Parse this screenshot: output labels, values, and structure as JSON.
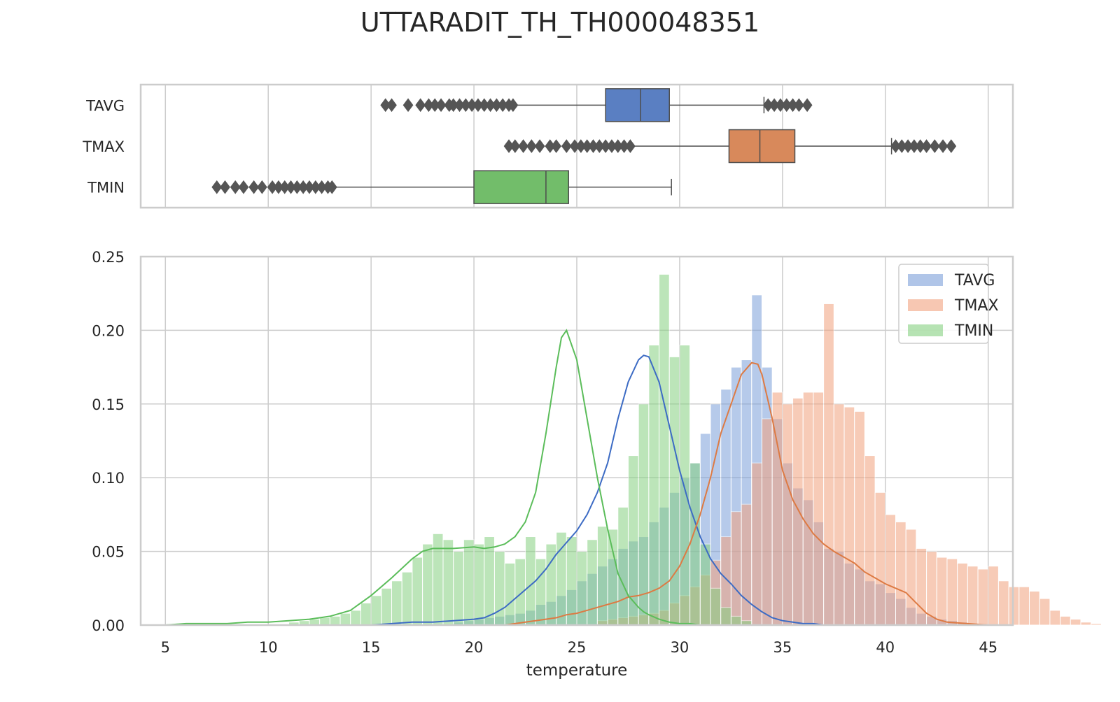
{
  "chart_data": {
    "type": "histogram-with-boxplot",
    "title": "UTTARADIT_TH_TH000048351",
    "xlabel": "temperature",
    "ylabel": "",
    "xlim": [
      3.8,
      46.2
    ],
    "ylim": [
      0,
      0.25
    ],
    "grid": true,
    "legend_position": "top-right",
    "x_ticks": [
      5,
      10,
      15,
      20,
      25,
      30,
      35,
      40,
      45
    ],
    "y_ticks": [
      "0.00",
      "0.05",
      "0.10",
      "0.15",
      "0.20",
      "0.25"
    ],
    "boxplot": {
      "categories": [
        "TAVG",
        "TMAX",
        "TMIN"
      ],
      "boxes": [
        {
          "name": "TAVG",
          "color": "#5a7fc2",
          "whisker_low": 21.9,
          "q1": 26.4,
          "median": 28.1,
          "q3": 29.5,
          "whisker_high": 34.1,
          "outliers": [
            15.7,
            16.0,
            16.8,
            17.4,
            17.8,
            18.1,
            18.4,
            18.8,
            19.0,
            19.3,
            19.6,
            19.9,
            20.2,
            20.5,
            20.8,
            21.1,
            21.4,
            21.7,
            21.9,
            34.3,
            34.6,
            34.9,
            35.2,
            35.5,
            35.8,
            36.2
          ]
        },
        {
          "name": "TMAX",
          "color": "#d8895b",
          "whisker_low": 27.8,
          "q1": 32.4,
          "median": 33.9,
          "q3": 35.6,
          "whisker_high": 40.3,
          "outliers": [
            21.7,
            22.0,
            22.4,
            22.8,
            23.2,
            23.7,
            24.0,
            24.5,
            24.9,
            25.2,
            25.5,
            25.8,
            26.1,
            26.4,
            26.7,
            27.0,
            27.3,
            27.6,
            40.5,
            40.8,
            41.1,
            41.4,
            41.7,
            42.0,
            42.4,
            42.8,
            43.2
          ]
        },
        {
          "name": "TMIN",
          "color": "#72bd6a",
          "whisker_low": 13.1,
          "q1": 20.0,
          "median": 23.5,
          "q3": 24.6,
          "whisker_high": 29.6,
          "outliers": [
            7.5,
            7.9,
            8.4,
            8.8,
            9.3,
            9.7,
            10.2,
            10.5,
            10.8,
            11.1,
            11.4,
            11.7,
            12.0,
            12.3,
            12.6,
            12.9,
            13.1
          ]
        }
      ]
    },
    "histogram": {
      "bin_width": 0.5,
      "series": [
        {
          "name": "TAVG",
          "color": "#7b9fd9",
          "kde_color": "#3c6bc4",
          "start": 19.0,
          "values": [
            0.002,
            0.003,
            0.004,
            0.005,
            0.006,
            0.007,
            0.008,
            0.01,
            0.014,
            0.016,
            0.02,
            0.024,
            0.03,
            0.035,
            0.04,
            0.045,
            0.052,
            0.057,
            0.06,
            0.07,
            0.08,
            0.09,
            0.1,
            0.11,
            0.13,
            0.15,
            0.16,
            0.175,
            0.18,
            0.224,
            0.175,
            0.14,
            0.11,
            0.093,
            0.085,
            0.07,
            0.052,
            0.05,
            0.042,
            0.038,
            0.03,
            0.028,
            0.022,
            0.018,
            0.012,
            0.008,
            0.006,
            0.004,
            0.003,
            0.002,
            0.001
          ]
        },
        {
          "name": "TMAX",
          "color": "#f2a27e",
          "kde_color": "#dd7a43",
          "start": 26.0,
          "values": [
            0.003,
            0.004,
            0.005,
            0.006,
            0.007,
            0.008,
            0.01,
            0.015,
            0.02,
            0.026,
            0.034,
            0.044,
            0.06,
            0.077,
            0.082,
            0.11,
            0.14,
            0.158,
            0.15,
            0.154,
            0.158,
            0.158,
            0.218,
            0.15,
            0.148,
            0.145,
            0.115,
            0.09,
            0.075,
            0.07,
            0.065,
            0.052,
            0.05,
            0.046,
            0.045,
            0.042,
            0.04,
            0.038,
            0.04,
            0.03,
            0.026,
            0.026,
            0.023,
            0.018,
            0.01,
            0.006,
            0.004,
            0.002,
            0.001
          ]
        },
        {
          "name": "TMIN",
          "color": "#86d080",
          "kde_color": "#5bbd5a",
          "start": 11.0,
          "values": [
            0.002,
            0.003,
            0.004,
            0.005,
            0.006,
            0.008,
            0.01,
            0.015,
            0.02,
            0.025,
            0.03,
            0.036,
            0.046,
            0.055,
            0.062,
            0.058,
            0.05,
            0.058,
            0.055,
            0.06,
            0.05,
            0.042,
            0.045,
            0.06,
            0.045,
            0.055,
            0.063,
            0.06,
            0.05,
            0.058,
            0.067,
            0.065,
            0.08,
            0.115,
            0.15,
            0.19,
            0.238,
            0.182,
            0.19,
            0.11,
            0.055,
            0.025,
            0.012,
            0.006,
            0.003
          ]
        }
      ]
    },
    "kde": {
      "x": [
        5,
        6,
        7,
        8,
        9,
        10,
        11,
        12,
        13,
        14,
        15,
        16,
        17,
        17.5,
        18,
        19,
        20,
        20.5,
        21,
        21.5,
        22,
        22.5,
        23,
        23.5,
        24,
        24.25,
        24.5,
        25,
        25.5,
        26,
        26.5,
        27,
        27.5,
        28,
        28.25,
        28.5,
        29,
        29.5,
        30,
        30.5,
        31,
        31.5,
        32,
        32.5,
        33,
        33.5,
        33.8,
        34,
        34.5,
        35,
        35.5,
        36,
        36.5,
        37,
        37.5,
        38,
        38.5,
        39,
        39.5,
        40,
        40.5,
        41,
        41.5,
        42,
        42.5,
        43,
        44,
        45
      ],
      "series": [
        {
          "name": "TAVG",
          "y": [
            0,
            0,
            0,
            0,
            0,
            0,
            0,
            0,
            0,
            0,
            0,
            0.001,
            0.002,
            0.002,
            0.002,
            0.003,
            0.004,
            0.005,
            0.008,
            0.012,
            0.018,
            0.024,
            0.03,
            0.038,
            0.048,
            0.052,
            0.056,
            0.064,
            0.075,
            0.09,
            0.11,
            0.14,
            0.165,
            0.18,
            0.183,
            0.182,
            0.165,
            0.135,
            0.105,
            0.08,
            0.06,
            0.045,
            0.035,
            0.028,
            0.02,
            0.014,
            0.011,
            0.009,
            0.005,
            0.003,
            0.002,
            0.001,
            0.001,
            0,
            0,
            0,
            0,
            0,
            0,
            0,
            0,
            0,
            0,
            0,
            0,
            0,
            0,
            0
          ]
        },
        {
          "name": "TMAX",
          "y": [
            0,
            0,
            0,
            0,
            0,
            0,
            0,
            0,
            0,
            0,
            0,
            0,
            0,
            0,
            0,
            0,
            0,
            0,
            0,
            0,
            0.001,
            0.002,
            0.003,
            0.004,
            0.005,
            0.006,
            0.007,
            0.008,
            0.01,
            0.012,
            0.014,
            0.016,
            0.019,
            0.02,
            0.021,
            0.022,
            0.025,
            0.03,
            0.04,
            0.055,
            0.075,
            0.1,
            0.13,
            0.15,
            0.17,
            0.178,
            0.177,
            0.17,
            0.14,
            0.105,
            0.085,
            0.072,
            0.062,
            0.055,
            0.05,
            0.046,
            0.042,
            0.036,
            0.032,
            0.028,
            0.025,
            0.022,
            0.015,
            0.008,
            0.004,
            0.002,
            0.001,
            0
          ]
        },
        {
          "name": "TMIN",
          "y": [
            0,
            0.001,
            0.001,
            0.001,
            0.002,
            0.002,
            0.003,
            0.004,
            0.006,
            0.01,
            0.02,
            0.032,
            0.045,
            0.05,
            0.052,
            0.052,
            0.053,
            0.052,
            0.053,
            0.055,
            0.06,
            0.07,
            0.09,
            0.13,
            0.175,
            0.195,
            0.2,
            0.18,
            0.14,
            0.1,
            0.065,
            0.035,
            0.02,
            0.012,
            0.009,
            0.007,
            0.004,
            0.002,
            0.001,
            0.001,
            0,
            0,
            0,
            0,
            0,
            0,
            0,
            0,
            0,
            0,
            0,
            0,
            0,
            0,
            0,
            0,
            0,
            0,
            0,
            0,
            0,
            0,
            0,
            0,
            0,
            0,
            0,
            0
          ]
        }
      ]
    },
    "legend": [
      "TAVG",
      "TMAX",
      "TMIN"
    ]
  }
}
